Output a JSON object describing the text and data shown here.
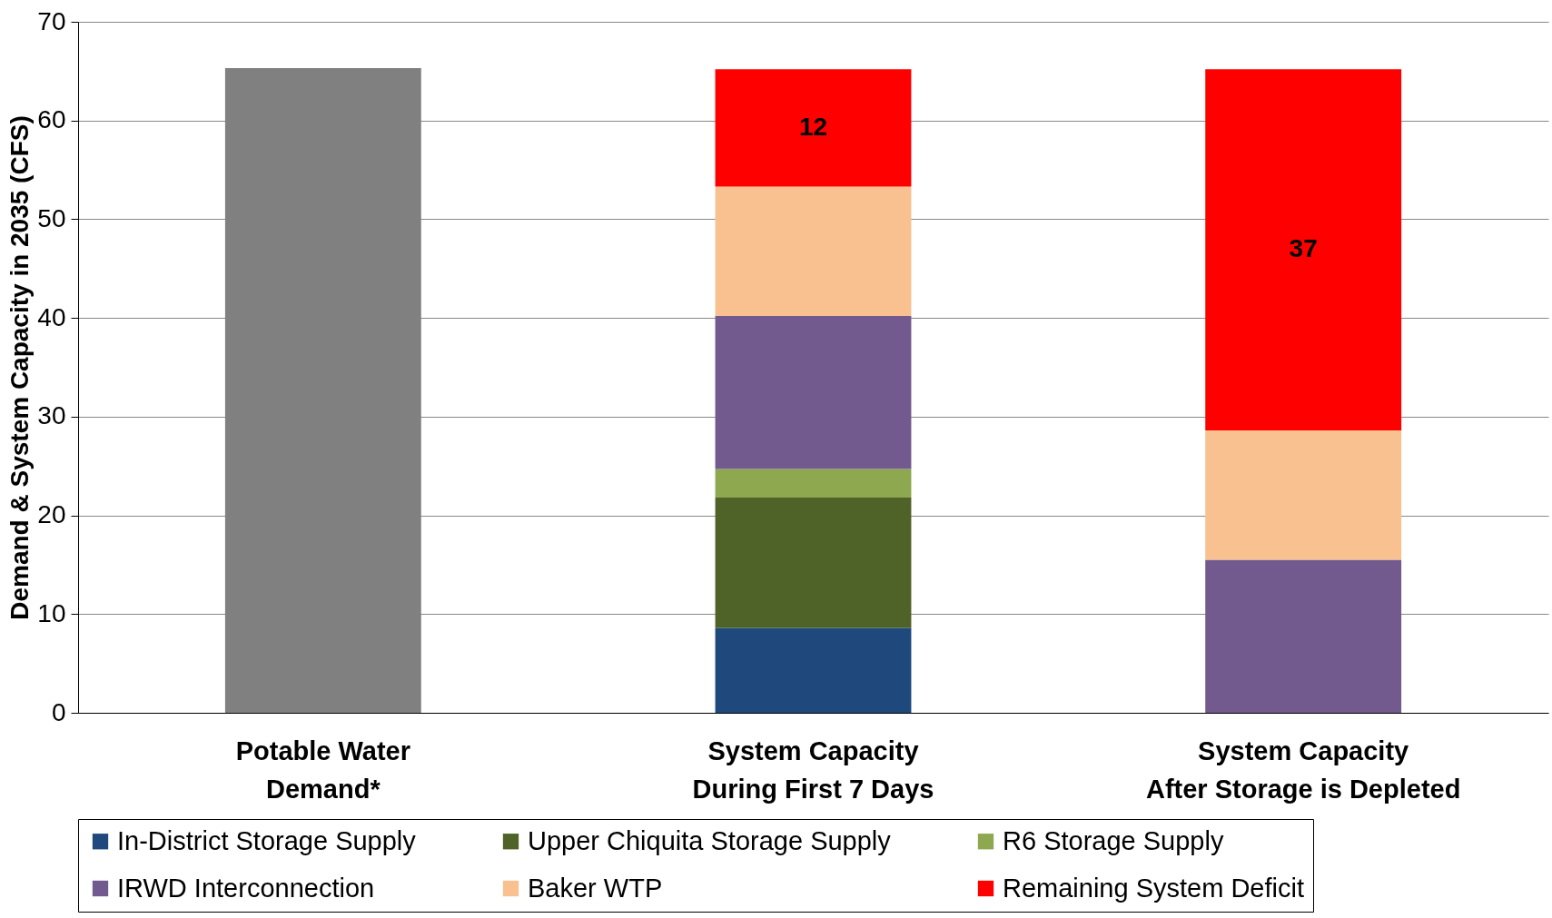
{
  "chart_data": {
    "type": "bar",
    "stacked": true,
    "ylabel": "Demand & System Capacity in 2035 (CFS)",
    "categories": [
      "Potable Water\nDemand*",
      "System Capacity\nDuring First 7 Days",
      "System Capacity\nAfter Storage is Depleted"
    ],
    "series": [
      {
        "color": "#808080",
        "values": [
          65.3,
          null,
          null
        ]
      },
      {
        "name": "In-District Storage Supply",
        "color": "#1f497d",
        "values": [
          null,
          8.6,
          null
        ]
      },
      {
        "name": "Upper Chiquita Storage Supply",
        "color": "#4f6228",
        "values": [
          null,
          13.2,
          null
        ]
      },
      {
        "name": "R6 Storage Supply",
        "color": "#8ea84f",
        "values": [
          null,
          2.9,
          null
        ]
      },
      {
        "name": "IRWD Interconnection",
        "color": "#725a8e",
        "values": [
          null,
          15.5,
          15.5
        ]
      },
      {
        "name": "Baker WTP",
        "color": "#f9c090",
        "values": [
          null,
          13.1,
          13.1
        ]
      },
      {
        "name": "Remaining System Deficit",
        "color": "#ff0000",
        "values": [
          null,
          11.9,
          36.6
        ],
        "value_labels": [
          null,
          "12",
          "37"
        ]
      }
    ],
    "ylim": [
      0,
      70
    ],
    "yticks": [
      0,
      10,
      20,
      30,
      40,
      50,
      60,
      70
    ],
    "grid": "y",
    "legend": "bottom"
  }
}
